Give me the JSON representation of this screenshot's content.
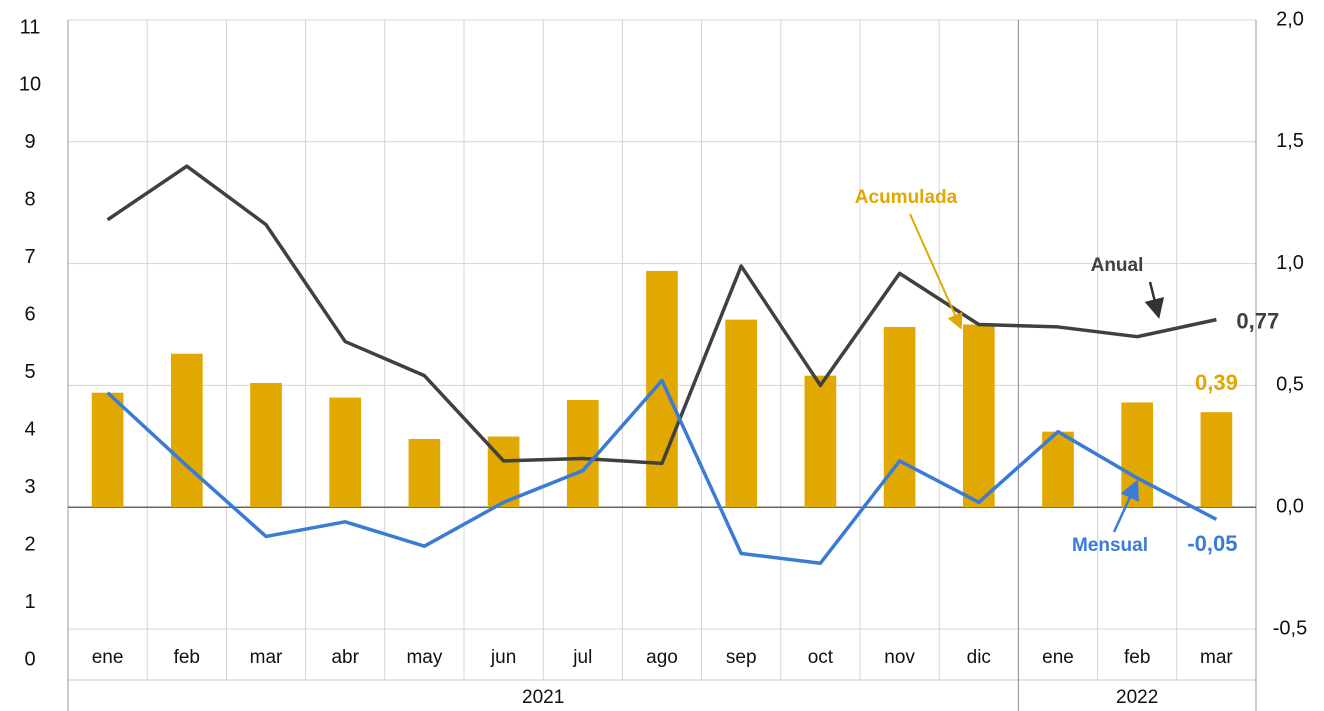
{
  "chart_data": {
    "type": "bar",
    "categories": [
      "ene",
      "feb",
      "mar",
      "abr",
      "may",
      "jun",
      "jul",
      "ago",
      "sep",
      "oct",
      "nov",
      "dic",
      "ene",
      "feb",
      "mar"
    ],
    "groups": [
      {
        "label": "2021",
        "span": 12
      },
      {
        "label": "2022",
        "span": 3
      }
    ],
    "ylim": [
      0,
      11
    ],
    "yticks": [
      0,
      1,
      2,
      3,
      4,
      5,
      6,
      7,
      8,
      9,
      10,
      11
    ],
    "y2lim": [
      -0.5,
      2.0
    ],
    "y2ticks": [
      {
        "value": 2.0,
        "label": "2,0"
      },
      {
        "value": 1.5,
        "label": "1,5"
      },
      {
        "value": 1.0,
        "label": "1,0"
      },
      {
        "value": 0.5,
        "label": "0,5"
      },
      {
        "value": 0.0,
        "label": "0,0"
      },
      {
        "value": -0.5,
        "label": "-0,5"
      }
    ],
    "grid": true,
    "series": [
      {
        "name": "Acumulada",
        "type": "bar",
        "axis": "y2",
        "color": "#e0a800",
        "values": [
          0.47,
          0.63,
          0.51,
          0.45,
          0.28,
          0.29,
          0.44,
          0.97,
          0.77,
          0.54,
          0.74,
          0.75,
          0.31,
          0.43,
          0.39
        ],
        "value_labels": [
          null,
          null,
          null,
          null,
          null,
          null,
          null,
          null,
          null,
          null,
          null,
          null,
          null,
          null,
          "0,39"
        ]
      },
      {
        "name": "Anual",
        "type": "line",
        "axis": "y2",
        "color": "#404040",
        "values": [
          1.18,
          1.4,
          1.16,
          0.68,
          0.54,
          0.19,
          0.2,
          0.18,
          0.99,
          0.5,
          0.96,
          0.75,
          0.74,
          0.7,
          0.77
        ],
        "value_labels": [
          null,
          null,
          null,
          null,
          null,
          null,
          null,
          null,
          null,
          null,
          null,
          null,
          null,
          null,
          "0,77"
        ]
      },
      {
        "name": "Mensual",
        "type": "line",
        "axis": "y2",
        "color": "#3a7bd5",
        "values": [
          0.47,
          0.17,
          -0.12,
          -0.06,
          -0.16,
          0.02,
          0.15,
          0.52,
          -0.19,
          -0.23,
          0.19,
          0.02,
          0.31,
          0.12,
          -0.05
        ],
        "value_labels": [
          null,
          null,
          null,
          null,
          null,
          null,
          null,
          null,
          null,
          null,
          null,
          null,
          null,
          null,
          "-0,05"
        ]
      }
    ]
  }
}
